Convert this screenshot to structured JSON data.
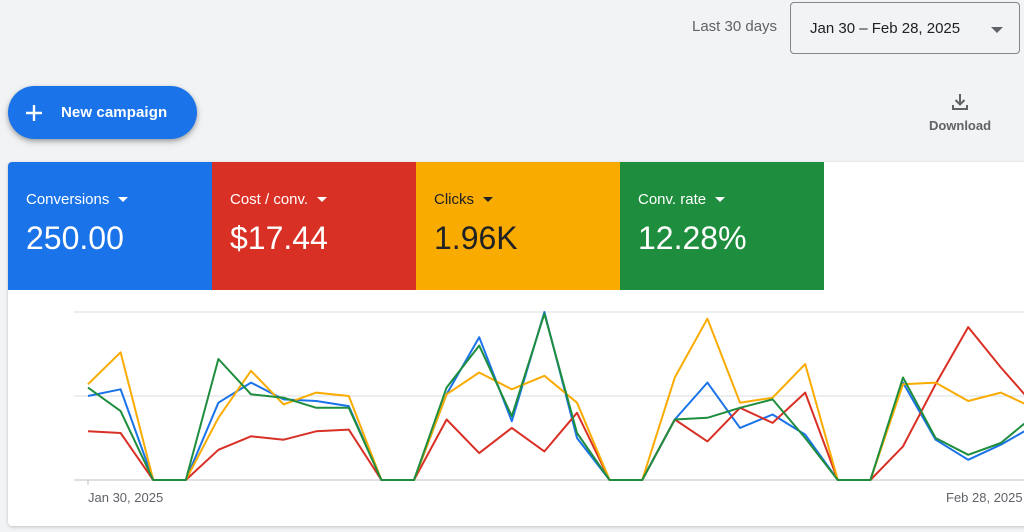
{
  "header": {
    "range_label": "Last 30 days",
    "date_range": "Jan 30 – Feb 28, 2025"
  },
  "actions": {
    "new_campaign_label": "New campaign",
    "download_label": "Download"
  },
  "metrics": [
    {
      "label": "Conversions",
      "value": "250.00",
      "color": "#1a73e8"
    },
    {
      "label": "Cost / conv.",
      "value": "$17.44",
      "color": "#d93025"
    },
    {
      "label": "Clicks",
      "value": "1.96K",
      "color": "#f9ab00"
    },
    {
      "label": "Conv. rate",
      "value": "12.28%",
      "color": "#1e8e3e"
    }
  ],
  "chart_data": {
    "type": "line",
    "x_tick_labels": [
      "Jan 30, 2025",
      "Feb 28, 2025"
    ],
    "grid": true,
    "y_range": [
      0,
      1
    ],
    "series": [
      {
        "name": "Conversions",
        "color": "#1a73e8",
        "values": [
          0.5,
          0.54,
          0,
          0,
          0.46,
          0.58,
          0.48,
          0.47,
          0.44,
          0,
          0,
          0.51,
          0.85,
          0.35,
          1.0,
          0.25,
          0,
          0,
          0.36,
          0.58,
          0.31,
          0.39,
          0.27,
          0,
          0,
          0.58,
          0.24,
          0.12,
          0.21,
          0.32
        ]
      },
      {
        "name": "Cost / conv.",
        "color": "#d93025",
        "values": [
          0.29,
          0.28,
          0,
          0,
          0.18,
          0.26,
          0.24,
          0.29,
          0.3,
          0,
          0,
          0.36,
          0.16,
          0.31,
          0.17,
          0.4,
          0,
          0,
          0.36,
          0.23,
          0.43,
          0.34,
          0.52,
          0,
          0,
          0.2,
          0.57,
          0.91,
          0.67,
          0.45
        ]
      },
      {
        "name": "Clicks",
        "color": "#f9ab00",
        "values": [
          0.57,
          0.76,
          0,
          0,
          0.37,
          0.65,
          0.45,
          0.52,
          0.5,
          0,
          0,
          0.51,
          0.64,
          0.54,
          0.62,
          0.46,
          0,
          0,
          0.61,
          0.96,
          0.46,
          0.49,
          0.69,
          0,
          0,
          0.57,
          0.58,
          0.47,
          0.52,
          0.43
        ]
      },
      {
        "name": "Conv. rate",
        "color": "#1e8e3e",
        "values": [
          0.55,
          0.41,
          0,
          0,
          0.72,
          0.51,
          0.49,
          0.43,
          0.43,
          0,
          0,
          0.55,
          0.8,
          0.38,
          0.99,
          0.28,
          0,
          0,
          0.36,
          0.37,
          0.43,
          0.48,
          0.25,
          0,
          0,
          0.61,
          0.25,
          0.15,
          0.22,
          0.38
        ]
      }
    ]
  }
}
